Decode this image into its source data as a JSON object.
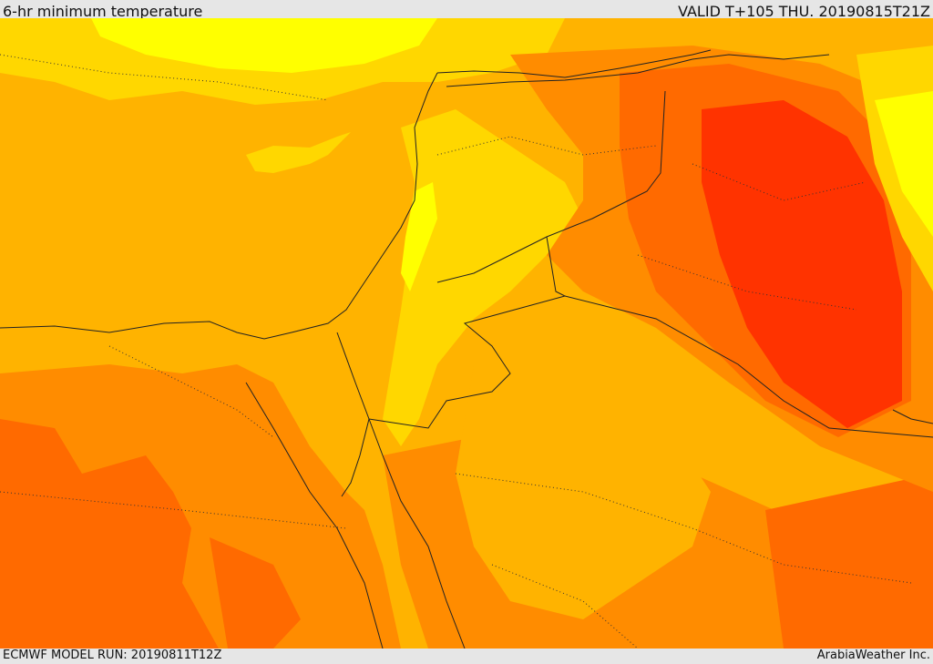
{
  "header": {
    "title": "6-hr minimum temperature",
    "valid": "VALID T+105 THU. 20190815T21Z"
  },
  "footer": {
    "model_run": "ECMWF MODEL RUN: 20190811T12Z",
    "credit": "ArabiaWeather Inc."
  },
  "map": {
    "variable": "6-hr minimum temperature",
    "region": "Eastern Mediterranean / Levant / Egypt / Iraq",
    "palette": {
      "coolest": "#ffff00",
      "cool": "#ffd700",
      "mild": "#ffb300",
      "warm": "#ff8c00",
      "hot": "#ff6a00",
      "hottest": "#ff3300",
      "sea": "#ffb300",
      "border": "#222222"
    }
  }
}
